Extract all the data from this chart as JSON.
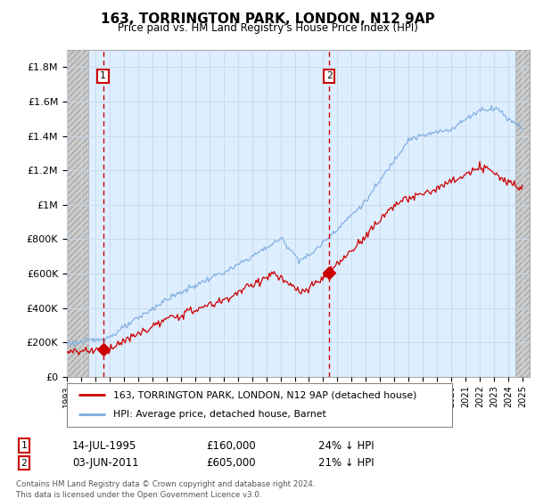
{
  "title": "163, TORRINGTON PARK, LONDON, N12 9AP",
  "subtitle": "Price paid vs. HM Land Registry's House Price Index (HPI)",
  "footer": "Contains HM Land Registry data © Crown copyright and database right 2024.\nThis data is licensed under the Open Government Licence v3.0.",
  "legend_entry1": "163, TORRINGTON PARK, LONDON, N12 9AP (detached house)",
  "legend_entry2": "HPI: Average price, detached house, Barnet",
  "annotation1": {
    "num": "1",
    "date": "14-JUL-1995",
    "price": "£160,000",
    "note": "24% ↓ HPI"
  },
  "annotation2": {
    "num": "2",
    "date": "03-JUN-2011",
    "price": "£605,000",
    "note": "21% ↓ HPI"
  },
  "ylim": [
    0,
    1900000
  ],
  "yticks": [
    0,
    200000,
    400000,
    600000,
    800000,
    1000000,
    1200000,
    1400000,
    1600000,
    1800000
  ],
  "ytick_labels": [
    "£0",
    "£200K",
    "£400K",
    "£600K",
    "£800K",
    "£1M",
    "£1.2M",
    "£1.4M",
    "£1.6M",
    "£1.8M"
  ],
  "red_line_color": "#cc0000",
  "blue_line_color": "#7aaadd",
  "grid_color": "#c8d8e8",
  "plot_bg": "#ddeeff",
  "hatch_bg": "#c8c8c8",
  "annotation_box_color": "#cc0000",
  "vline_color": "#cc0000",
  "sale1_x": 1995.54,
  "sale1_y": 160000,
  "sale2_x": 2011.42,
  "sale2_y": 605000,
  "xmin": 1993.0,
  "xmax": 2025.5,
  "hatch_left_end": 1994.5,
  "hatch_right_start": 2024.5
}
